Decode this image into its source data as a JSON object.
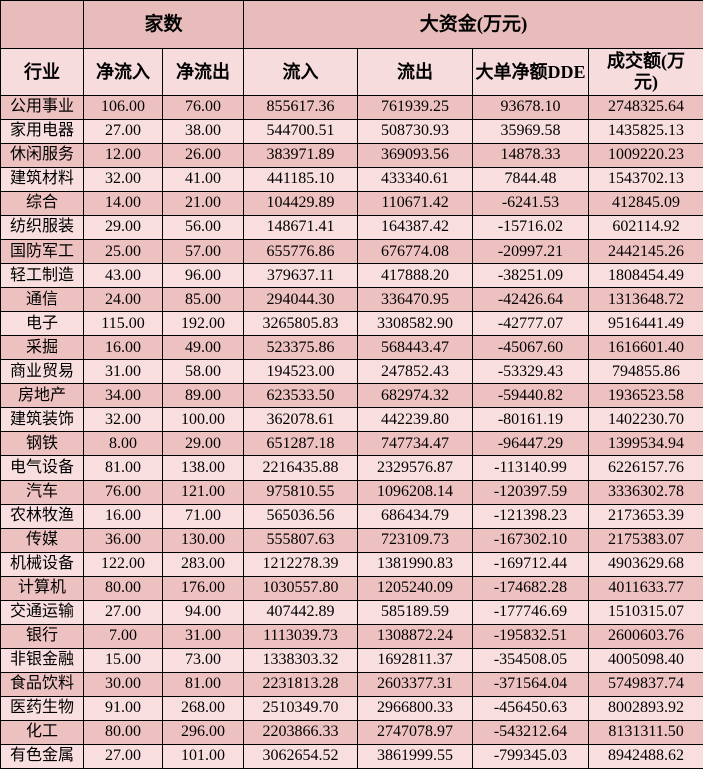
{
  "table": {
    "corner_label": "",
    "group_headers": [
      {
        "label": "家数",
        "span": 2
      },
      {
        "label": "大资金(万元)",
        "span": 4
      }
    ],
    "columns": [
      "行业",
      "净流入",
      "净流出",
      "流入",
      "流出",
      "大单净额DDE",
      "成交额(万元)"
    ],
    "rows": [
      {
        "industry": "公用事业",
        "values": [
          "106.00",
          "76.00",
          "855617.36",
          "761939.25",
          "93678.10",
          "2748325.64"
        ]
      },
      {
        "industry": "家用电器",
        "values": [
          "27.00",
          "38.00",
          "544700.51",
          "508730.93",
          "35969.58",
          "1435825.13"
        ]
      },
      {
        "industry": "休闲服务",
        "values": [
          "12.00",
          "26.00",
          "383971.89",
          "369093.56",
          "14878.33",
          "1009220.23"
        ]
      },
      {
        "industry": "建筑材料",
        "values": [
          "32.00",
          "41.00",
          "441185.10",
          "433340.61",
          "7844.48",
          "1543702.13"
        ]
      },
      {
        "industry": "综合",
        "values": [
          "14.00",
          "21.00",
          "104429.89",
          "110671.42",
          "-6241.53",
          "412845.09"
        ]
      },
      {
        "industry": "纺织服装",
        "values": [
          "29.00",
          "56.00",
          "148671.41",
          "164387.42",
          "-15716.02",
          "602114.92"
        ]
      },
      {
        "industry": "国防军工",
        "values": [
          "25.00",
          "57.00",
          "655776.86",
          "676774.08",
          "-20997.21",
          "2442145.26"
        ]
      },
      {
        "industry": "轻工制造",
        "values": [
          "43.00",
          "96.00",
          "379637.11",
          "417888.20",
          "-38251.09",
          "1808454.49"
        ]
      },
      {
        "industry": "通信",
        "values": [
          "24.00",
          "85.00",
          "294044.30",
          "336470.95",
          "-42426.64",
          "1313648.72"
        ]
      },
      {
        "industry": "电子",
        "values": [
          "115.00",
          "192.00",
          "3265805.83",
          "3308582.90",
          "-42777.07",
          "9516441.49"
        ]
      },
      {
        "industry": "采掘",
        "values": [
          "16.00",
          "49.00",
          "523375.86",
          "568443.47",
          "-45067.60",
          "1616601.40"
        ]
      },
      {
        "industry": "商业贸易",
        "values": [
          "31.00",
          "58.00",
          "194523.00",
          "247852.43",
          "-53329.43",
          "794855.86"
        ]
      },
      {
        "industry": "房地产",
        "values": [
          "34.00",
          "89.00",
          "623533.50",
          "682974.32",
          "-59440.82",
          "1936523.58"
        ]
      },
      {
        "industry": "建筑装饰",
        "values": [
          "32.00",
          "100.00",
          "362078.61",
          "442239.80",
          "-80161.19",
          "1402230.70"
        ]
      },
      {
        "industry": "钢铁",
        "values": [
          "8.00",
          "29.00",
          "651287.18",
          "747734.47",
          "-96447.29",
          "1399534.94"
        ]
      },
      {
        "industry": "电气设备",
        "values": [
          "81.00",
          "138.00",
          "2216435.88",
          "2329576.87",
          "-113140.99",
          "6226157.76"
        ]
      },
      {
        "industry": "汽车",
        "values": [
          "76.00",
          "121.00",
          "975810.55",
          "1096208.14",
          "-120397.59",
          "3336302.78"
        ]
      },
      {
        "industry": "农林牧渔",
        "values": [
          "16.00",
          "71.00",
          "565036.56",
          "686434.79",
          "-121398.23",
          "2173653.39"
        ]
      },
      {
        "industry": "传媒",
        "values": [
          "36.00",
          "130.00",
          "555807.63",
          "723109.73",
          "-167302.10",
          "2175383.07"
        ]
      },
      {
        "industry": "机械设备",
        "values": [
          "122.00",
          "283.00",
          "1212278.39",
          "1381990.83",
          "-169712.44",
          "4903629.68"
        ]
      },
      {
        "industry": "计算机",
        "values": [
          "80.00",
          "176.00",
          "1030557.80",
          "1205240.09",
          "-174682.28",
          "4011633.77"
        ]
      },
      {
        "industry": "交通运输",
        "values": [
          "27.00",
          "94.00",
          "407442.89",
          "585189.59",
          "-177746.69",
          "1510315.07"
        ]
      },
      {
        "industry": "银行",
        "values": [
          "7.00",
          "31.00",
          "1113039.73",
          "1308872.24",
          "-195832.51",
          "2600603.76"
        ]
      },
      {
        "industry": "非银金融",
        "values": [
          "15.00",
          "73.00",
          "1338303.32",
          "1692811.37",
          "-354508.05",
          "4005098.40"
        ]
      },
      {
        "industry": "食品饮料",
        "values": [
          "30.00",
          "81.00",
          "2231813.28",
          "2603377.31",
          "-371564.04",
          "5749837.74"
        ]
      },
      {
        "industry": "医药生物",
        "values": [
          "91.00",
          "268.00",
          "2510349.70",
          "2966800.33",
          "-456450.63",
          "8002893.92"
        ]
      },
      {
        "industry": "化工",
        "values": [
          "80.00",
          "296.00",
          "2203866.33",
          "2747078.97",
          "-543212.64",
          "8131311.50"
        ]
      },
      {
        "industry": "有色金属",
        "values": [
          "27.00",
          "101.00",
          "3062654.52",
          "3861999.55",
          "-799345.03",
          "8942488.62"
        ]
      }
    ]
  },
  "colors": {
    "row_dark": "#eec1c1",
    "row_light": "#f8dede",
    "header_dark": "#e9bcbc",
    "header_light": "#f6dcdc",
    "border": "#000000",
    "text": "#000000"
  }
}
